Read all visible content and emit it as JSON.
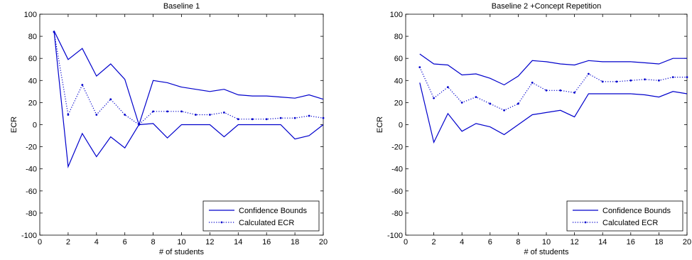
{
  "chart_data": [
    {
      "type": "line",
      "title": "Baseline 1",
      "xlabel": "# of students",
      "ylabel": "ECR",
      "xlim": [
        0,
        20
      ],
      "ylim": [
        -100,
        100
      ],
      "xticks": [
        0,
        2,
        4,
        6,
        8,
        10,
        12,
        14,
        16,
        18,
        20
      ],
      "yticks": [
        -100,
        -80,
        -60,
        -40,
        -20,
        0,
        20,
        40,
        60,
        80,
        100
      ],
      "x": [
        1,
        2,
        3,
        4,
        5,
        6,
        7,
        8,
        9,
        10,
        11,
        12,
        13,
        14,
        15,
        16,
        17,
        18,
        19,
        20
      ],
      "series": [
        {
          "name": "Confidence Bounds",
          "role": "upper",
          "color": "#0000cc",
          "style": "solid",
          "values": [
            85,
            59,
            69,
            44,
            55,
            41,
            0,
            40,
            38,
            34,
            32,
            30,
            32,
            27,
            26,
            26,
            25,
            24,
            27,
            23
          ]
        },
        {
          "name": "Confidence Bounds",
          "role": "lower",
          "color": "#0000cc",
          "style": "solid",
          "values": [
            85,
            -38,
            -8,
            -29,
            -11,
            -21,
            0,
            1,
            -12,
            0,
            0,
            0,
            -11,
            0,
            0,
            0,
            0,
            -13,
            -10,
            0
          ]
        },
        {
          "name": "Calculated ECR",
          "role": "mean",
          "color": "#0000cc",
          "style": "dotted",
          "values": [
            84,
            9,
            36,
            9,
            23,
            9,
            0,
            12,
            12,
            12,
            9,
            9,
            11,
            5,
            5,
            5,
            6,
            6,
            8,
            6
          ]
        }
      ],
      "legend": {
        "position": "bottom-right",
        "entries": [
          "Confidence Bounds",
          "Calculated ECR"
        ]
      }
    },
    {
      "type": "line",
      "title": "Baseline 2 +Concept Repetition",
      "xlabel": "# of students",
      "ylabel": "ECR",
      "xlim": [
        0,
        20
      ],
      "ylim": [
        -100,
        100
      ],
      "xticks": [
        0,
        2,
        4,
        6,
        8,
        10,
        12,
        14,
        16,
        18,
        20
      ],
      "yticks": [
        -100,
        -80,
        -60,
        -40,
        -20,
        0,
        20,
        40,
        60,
        80,
        100
      ],
      "x": [
        1,
        2,
        3,
        4,
        5,
        6,
        7,
        8,
        9,
        10,
        11,
        12,
        13,
        14,
        15,
        16,
        17,
        18,
        19,
        20
      ],
      "series": [
        {
          "name": "Confidence Bounds",
          "role": "upper",
          "color": "#0000cc",
          "style": "solid",
          "values": [
            64,
            55,
            54,
            45,
            46,
            42,
            36,
            44,
            58,
            57,
            55,
            54,
            58,
            57,
            57,
            57,
            56,
            55,
            60,
            60
          ]
        },
        {
          "name": "Confidence Bounds",
          "role": "lower",
          "color": "#0000cc",
          "style": "solid",
          "values": [
            38,
            -16,
            10,
            -6,
            1,
            -2,
            -9,
            0,
            9,
            11,
            13,
            7,
            28,
            28,
            28,
            28,
            27,
            25,
            30,
            28
          ]
        },
        {
          "name": "Calculated ECR",
          "role": "mean",
          "color": "#0000cc",
          "style": "dotted",
          "values": [
            52,
            24,
            34,
            20,
            25,
            19,
            13,
            19,
            38,
            31,
            31,
            29,
            46,
            39,
            39,
            40,
            41,
            40,
            43,
            43
          ]
        }
      ],
      "legend": {
        "position": "bottom-right",
        "entries": [
          "Confidence Bounds",
          "Calculated ECR"
        ]
      }
    }
  ]
}
